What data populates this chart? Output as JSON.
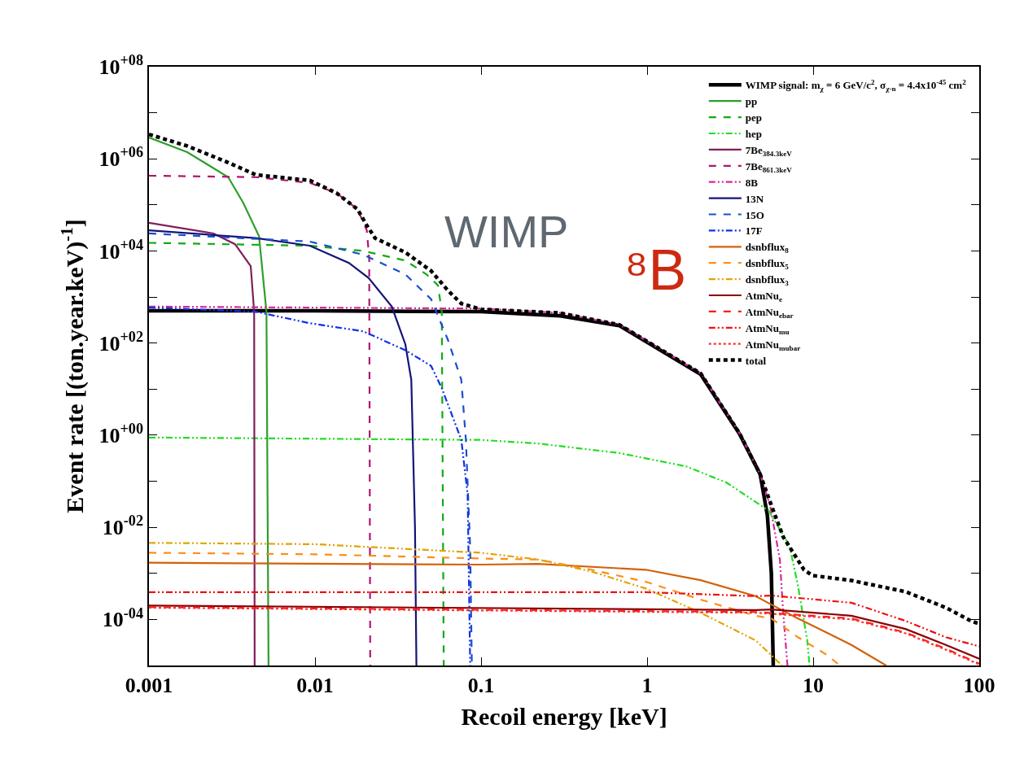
{
  "chart_data": {
    "type": "line",
    "xlabel": "Recoil energy [keV]",
    "ylabel": "Event rate [(ton.year.keV)$^{-1}$]",
    "log": "xy",
    "legend": "top right",
    "xlim": [
      0.001,
      100
    ],
    "xticks": [
      0.001,
      0.01,
      0.1,
      1,
      10,
      100
    ],
    "ylim": [
      1e-05,
      100000000.0
    ],
    "yticks": [
      {
        "value": 0.0001,
        "label": "10$^{-04}$"
      },
      {
        "value": 0.001,
        "label": null
      },
      {
        "value": 0.01,
        "label": "10$^{-02}$"
      },
      {
        "value": 0.1,
        "label": null
      },
      {
        "value": 1,
        "label": "10$^{+00}$"
      },
      {
        "value": 10,
        "label": null
      },
      {
        "value": 100,
        "label": "10$^{+02}$"
      },
      {
        "value": 1000,
        "label": null
      },
      {
        "value": 10000,
        "label": "10$^{+04}$"
      },
      {
        "value": 100000,
        "label": null
      },
      {
        "value": 1000000,
        "label": "10$^{+06}$"
      },
      {
        "value": 10000000,
        "label": null
      },
      {
        "value": 100000000,
        "label": "10$^{+08}$"
      }
    ],
    "annotations": [
      "WIMP",
      "⁸B"
    ],
    "series": [
      {
        "name": "WIMP signal: m$_{χ}$ = 6 GeV/c$^{2}$, σ$_{χ-n}$ = 4.4x10$^{-45}$ cm$^{2}$",
        "color": "#000000",
        "line_style": "solid",
        "x": [
          0.001,
          0.01,
          0.1,
          0.3,
          0.68,
          2.1,
          3.6,
          4.8,
          5.3,
          5.6,
          5.75
        ],
        "values": [
          500,
          500,
          480,
          390,
          240,
          21,
          1.07,
          0.14,
          0.018,
          0.001,
          1e-05
        ]
      },
      {
        "name": "pp",
        "color": "#2e9e2e",
        "line_style": "solid",
        "x": [
          0.001,
          0.0017,
          0.003,
          0.0037,
          0.0046,
          0.0051,
          0.00525
        ],
        "values": [
          2900000,
          1400000,
          400000,
          110000,
          21000,
          480,
          1e-05
        ]
      },
      {
        "name": "pep",
        "color": "#11aa11",
        "line_style": "dashed",
        "x": [
          0.001,
          0.0093,
          0.0195,
          0.035,
          0.047,
          0.055,
          0.058,
          0.0596
        ],
        "values": [
          15000,
          13000,
          10000,
          6200,
          3100,
          1800,
          480,
          1e-05
        ]
      },
      {
        "name": "hep",
        "color": "#22dd22",
        "line_style": "dashdot",
        "x": [
          0.001,
          0.1,
          0.22,
          0.68,
          1.72,
          3.0,
          5.4,
          7.2,
          8.1,
          9.2,
          9.5
        ],
        "values": [
          0.89,
          0.79,
          0.66,
          0.41,
          0.21,
          0.094,
          0.023,
          0.004,
          0.00054,
          3.6e-05,
          1e-05
        ]
      },
      {
        "name": "7Be$_{384.3keV}$",
        "color": "#7f1f5a",
        "line_style": "solid",
        "x": [
          0.001,
          0.00245,
          0.0033,
          0.0041,
          0.0043,
          0.00433
        ],
        "values": [
          41000,
          24000,
          14000,
          4700,
          480,
          1e-05
        ]
      },
      {
        "name": "7Be$_{861.3keV}$",
        "color": "#b0166e",
        "line_style": "dashed",
        "x": [
          0.001,
          0.0044,
          0.0093,
          0.0135,
          0.018,
          0.0205,
          0.0212,
          0.0215
        ],
        "values": [
          430000,
          400000,
          300000,
          180000,
          81000,
          28000,
          7000,
          1e-05
        ]
      },
      {
        "name": "8B",
        "color": "#d8289a",
        "line_style": "dashdot",
        "x": [
          0.001,
          0.1,
          0.3,
          0.68,
          2.1,
          3.6,
          4.8,
          5.5,
          6.3,
          6.6,
          7.0
        ],
        "values": [
          620,
          560,
          450,
          250,
          22,
          1.1,
          0.14,
          0.03,
          0.002,
          0.00014,
          1e-05
        ]
      },
      {
        "name": "13N",
        "color": "#141478",
        "line_style": "solid",
        "x": [
          0.001,
          0.0044,
          0.0093,
          0.016,
          0.021,
          0.029,
          0.035,
          0.038,
          0.04,
          0.0408
        ],
        "values": [
          28000,
          19000,
          13000,
          5500,
          2600,
          620,
          94,
          16,
          0.01,
          1e-05
        ]
      },
      {
        "name": "15O",
        "color": "#1a4fcc",
        "line_style": "dashed",
        "x": [
          0.001,
          0.0093,
          0.0195,
          0.035,
          0.05,
          0.063,
          0.076,
          0.081,
          0.086,
          0.088
        ],
        "values": [
          24000,
          16000,
          8300,
          3100,
          900,
          120,
          16,
          0.8,
          0.0035,
          1e-05
        ]
      },
      {
        "name": "17F",
        "color": "#1030e8",
        "line_style": "dashdot",
        "x": [
          0.001,
          0.0044,
          0.0093,
          0.0195,
          0.035,
          0.05,
          0.058,
          0.076,
          0.083,
          0.086
        ],
        "values": [
          590,
          480,
          270,
          180,
          70,
          32,
          10.5,
          0.8,
          0.052,
          1e-05
        ]
      },
      {
        "name": "dsnbflux$_{8}$",
        "color": "#d2620a",
        "line_style": "solid",
        "x": [
          0.001,
          0.1,
          0.22,
          0.98,
          2.1,
          4.5,
          5.6,
          8.1,
          17,
          27.5
        ],
        "values": [
          0.0017,
          0.00155,
          0.0016,
          0.0012,
          0.00071,
          0.00032,
          0.00021,
          0.000105,
          2.8e-05,
          1e-05
        ]
      },
      {
        "name": "dsnbflux$_{5}$",
        "color": "#ff8c1a",
        "line_style": "dashed",
        "x": [
          0.001,
          0.01,
          0.1,
          0.22,
          0.46,
          0.98,
          2.1,
          4.5,
          5.6,
          8.1,
          11.8,
          14.5
        ],
        "values": [
          0.0028,
          0.0026,
          0.0021,
          0.002,
          0.0012,
          0.00066,
          0.00027,
          0.00012,
          0.000105,
          4.1e-05,
          1.8e-05,
          1e-05
        ]
      },
      {
        "name": "dsnbflux$_{3}$",
        "color": "#e0a400",
        "line_style": "dashdot",
        "x": [
          0.001,
          0.01,
          0.1,
          0.22,
          0.46,
          0.98,
          2.1,
          4.5,
          6.5
        ],
        "values": [
          0.0046,
          0.0043,
          0.0028,
          0.002,
          0.0011,
          0.00047,
          0.00014,
          3.5e-05,
          1e-05
        ]
      },
      {
        "name": "AtmNu$_{e}$",
        "color": "#8b0000",
        "line_style": "solid",
        "x": [
          0.001,
          4.5,
          5.6,
          17,
          36,
          63,
          100
        ],
        "values": [
          0.0002,
          0.00016,
          0.000165,
          0.00012,
          6.2e-05,
          2.8e-05,
          1.4e-05
        ]
      },
      {
        "name": "AtmNu$_{ebar}$",
        "color": "#ff1a1a",
        "line_style": "dashed",
        "x": [
          0.001,
          4.5,
          17,
          36,
          63,
          100
        ],
        "values": [
          0.000185,
          0.000145,
          0.000105,
          5.2e-05,
          2.3e-05,
          1.1e-05
        ]
      },
      {
        "name": "AtmNu$_{mu}$",
        "color": "#ee1111",
        "line_style": "dashdot",
        "x": [
          0.001,
          0.98,
          4.5,
          5.6,
          17,
          36,
          63,
          100
        ],
        "values": [
          0.00039,
          0.00039,
          0.00032,
          0.00033,
          0.00023,
          9.3e-05,
          4.1e-05,
          2.6e-05
        ]
      },
      {
        "name": "AtmNu$_{mubar}$",
        "color": "#ff3030",
        "line_style": "dotted",
        "x": [
          0.001,
          4.5,
          17,
          36,
          63,
          100
        ],
        "values": [
          0.00018,
          0.00014,
          0.0001,
          5e-05,
          2.2e-05,
          1.05e-05
        ]
      },
      {
        "name": "total",
        "color": "#000000",
        "line_style": "dotted",
        "x": [
          0.001,
          0.0017,
          0.003,
          0.0044,
          0.0093,
          0.0135,
          0.018,
          0.0205,
          0.023,
          0.035,
          0.05,
          0.063,
          0.076,
          0.1,
          0.3,
          0.68,
          2.1,
          3.6,
          4.8,
          5.6,
          6.6,
          8.8,
          9.9,
          17,
          36,
          63,
          89,
          100
        ],
        "values": [
          3400000,
          1900000,
          830000,
          450000,
          340000,
          180000,
          81000,
          36000,
          19000,
          9300,
          3700,
          1400,
          720,
          540,
          450,
          250,
          22,
          1.1,
          0.14,
          0.03,
          0.0062,
          0.0012,
          0.0009,
          0.0007,
          0.0004,
          0.00018,
          9.3e-05,
          8e-05
        ]
      }
    ]
  }
}
